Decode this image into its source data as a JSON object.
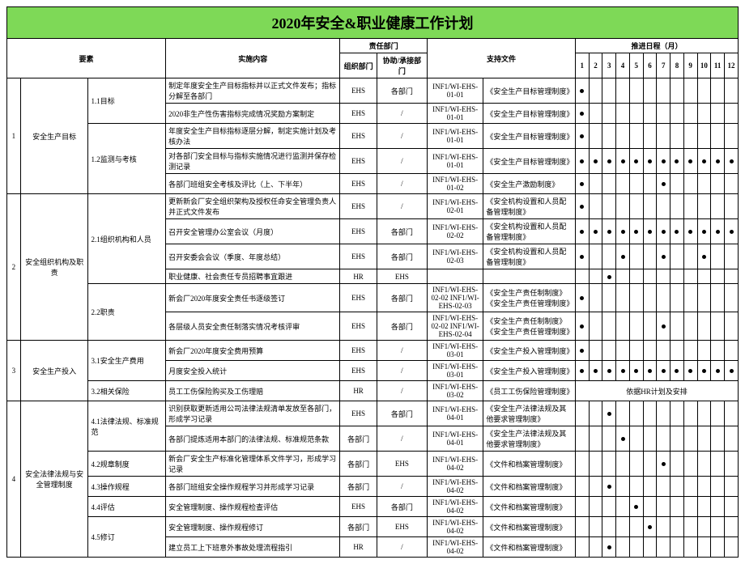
{
  "title": "2020年安全&职业健康工作计划",
  "headers": {
    "element": "要素",
    "content": "实施内容",
    "responsible": "责任部门",
    "org_dept": "组织部门",
    "assist_dept": "协助/承接部门",
    "support_doc": "支持文件",
    "schedule": "推进日程（月）",
    "months": [
      "1",
      "2",
      "3",
      "4",
      "5",
      "6",
      "7",
      "8",
      "9",
      "10",
      "11",
      "12"
    ]
  },
  "groups": [
    {
      "idx": "1",
      "name": "安全生产目标",
      "subs": [
        {
          "name": "1.1目标",
          "rows": [
            {
              "content": "制定年度安全生产目标指标并以正式文件发布；指标分解至各部门",
              "org": "EHS",
              "assist": "各部门",
              "docnum": "INF1/WI-EHS-01-01",
              "doc": "《安全生产目标管理制度》",
              "m": [
                1
              ],
              "merge": null
            },
            {
              "content": "2020非生产性伤害指标完成情况奖励方案制定",
              "org": "EHS",
              "assist": "/",
              "docnum": "INF1/WI-EHS-01-01",
              "doc": "《安全生产目标管理制度》",
              "m": [
                1
              ],
              "merge": null
            }
          ]
        },
        {
          "name": "1.2监测与考核",
          "rows": [
            {
              "content": "年度安全生产目标指标逐层分解，制定实施计划及考核办法",
              "org": "EHS",
              "assist": "/",
              "docnum": "INF1/WI-EHS-01-01",
              "doc": "《安全生产目标管理制度》",
              "m": [
                1
              ],
              "merge": null
            },
            {
              "content": "对各部门安全目标与指标实施情况进行监测并保存检测记录",
              "org": "EHS",
              "assist": "/",
              "docnum": "INF1/WI-EHS-01-01",
              "doc": "《安全生产目标管理制度》",
              "m": [
                1,
                2,
                3,
                4,
                5,
                6,
                7,
                8,
                9,
                10,
                11,
                12
              ],
              "merge": null
            },
            {
              "content": "各部门班组安全考核及评比（上、下半年）",
              "org": "EHS",
              "assist": "/",
              "docnum": "INF1/WI-EHS-01-02",
              "doc": "《安全生产激励制度》",
              "m": [
                1,
                7
              ],
              "merge": null
            }
          ]
        }
      ]
    },
    {
      "idx": "2",
      "name": "安全组织机构及职责",
      "subs": [
        {
          "name": "2.1组织机构和人员",
          "rows": [
            {
              "content": "更新新会厂安全组织架构及授权任命安全管理负责人并正式文件发布",
              "org": "EHS",
              "assist": "/",
              "docnum": "INF1/WI-EHS-02-01",
              "doc": "《安全机构设置和人员配备管理制度》",
              "m": [
                1
              ],
              "merge": null
            },
            {
              "content": "召开安全管理办公室会议（月度）",
              "org": "EHS",
              "assist": "各部门",
              "docnum": "INF1/WI-EHS-02-02",
              "doc": "《安全机构设置和人员配备管理制度》",
              "m": [
                1,
                2,
                3,
                4,
                5,
                6,
                7,
                8,
                9,
                10,
                11,
                12
              ],
              "merge": null
            },
            {
              "content": "召开安委会会议（季度、年度总结）",
              "org": "EHS",
              "assist": "各部门",
              "docnum": "INF1/WI-EHS-02-03",
              "doc": "《安全机构设置和人员配备管理制度》",
              "m": [
                1,
                4,
                7,
                10
              ],
              "merge": null
            },
            {
              "content": "职业健康、社会责任专员招聘事宜跟进",
              "org": "HR",
              "assist": "EHS",
              "docnum": "",
              "doc": "",
              "m": [
                3
              ],
              "merge": null
            }
          ]
        },
        {
          "name": "2.2职责",
          "rows": [
            {
              "content": "新会厂2020年度安全责任书逐级签订",
              "org": "EHS",
              "assist": "各部门",
              "docnum": "INF1/WI-EHS-02-02 INF1/WI-EHS-02-03",
              "doc": "《安全生产责任制制度》《安全生产责任管理制度》",
              "m": [
                1
              ],
              "merge": null
            },
            {
              "content": "各层级人员安全责任制落实情况考核评审",
              "org": "EHS",
              "assist": "各部门",
              "docnum": "INF1/WI-EHS-02-02 INF1/WI-EHS-02-04",
              "doc": "《安全生产责任制制度》《安全生产责任管理制度》",
              "m": [
                1,
                7
              ],
              "merge": null
            }
          ]
        }
      ]
    },
    {
      "idx": "3",
      "name": "安全生产投入",
      "subs": [
        {
          "name": "3.1安全生产费用",
          "rows": [
            {
              "content": "新会厂2020年度安全费用预算",
              "org": "EHS",
              "assist": "/",
              "docnum": "INF1/WI-EHS-03-01",
              "doc": "《安全生产投入管理制度》",
              "m": [
                1
              ],
              "merge": null
            },
            {
              "content": "月度安全投入统计",
              "org": "EHS",
              "assist": "/",
              "docnum": "INF1/WI-EHS-03-01",
              "doc": "《安全生产投入管理制度》",
              "m": [
                1,
                2,
                3,
                4,
                5,
                6,
                7,
                8,
                9,
                10,
                11,
                12
              ],
              "merge": null
            }
          ]
        },
        {
          "name": "3.2相关保险",
          "rows": [
            {
              "content": "员工工伤保险购买及工伤理赔",
              "org": "HR",
              "assist": "/",
              "docnum": "INF1/WI-EHS-03-02",
              "doc": "《员工工伤保险管理制度》",
              "m": [],
              "merge": "依据HR计划及安排"
            }
          ]
        }
      ]
    },
    {
      "idx": "4",
      "name": "安全法律法规与安全管理制度",
      "subs": [
        {
          "name": "4.1法律法规、标准规范",
          "rows": [
            {
              "content": "识别获取更新适用公司法律法规清单发放至各部门，形成学习记录",
              "org": "EHS",
              "assist": "各部门",
              "docnum": "INF1/WI-EHS-04-01",
              "doc": "《安全生产法律法规及其他要求管理制度》",
              "m": [
                3
              ],
              "merge": null
            },
            {
              "content": "各部门提炼适用本部门的法律法规、标准规范条款",
              "org": "各部门",
              "assist": "/",
              "docnum": "INF1/WI-EHS-04-01",
              "doc": "《安全生产法律法规及其他要求管理制度》",
              "m": [
                4
              ],
              "merge": null
            }
          ]
        },
        {
          "name": "4.2规章制度",
          "rows": [
            {
              "content": "新会厂安全生产标准化管理体系文件学习，形成学习记录",
              "org": "各部门",
              "assist": "EHS",
              "docnum": "INF1/WI-EHS-04-02",
              "doc": "《文件和档案管理制度》",
              "m": [
                7
              ],
              "merge": null
            }
          ]
        },
        {
          "name": "4.3操作规程",
          "rows": [
            {
              "content": "各部门班组安全操作规程学习并形成学习记录",
              "org": "各部门",
              "assist": "/",
              "docnum": "INF1/WI-EHS-04-02",
              "doc": "《文件和档案管理制度》",
              "m": [
                3
              ],
              "merge": null
            }
          ]
        },
        {
          "name": "4.4评估",
          "rows": [
            {
              "content": "安全管理制度、操作规程检查评估",
              "org": "EHS",
              "assist": "各部门",
              "docnum": "INF1/WI-EHS-04-02",
              "doc": "《文件和档案管理制度》",
              "m": [
                5
              ],
              "merge": null
            }
          ]
        },
        {
          "name": "4.5修订",
          "rows": [
            {
              "content": "安全管理制度、操作规程修订",
              "org": "各部门",
              "assist": "EHS",
              "docnum": "INF1/WI-EHS-04-02",
              "doc": "《文件和档案管理制度》",
              "m": [
                6
              ],
              "merge": null
            },
            {
              "content": "建立员工上下班意外事故处理流程指引",
              "org": "HR",
              "assist": "/",
              "docnum": "INF1/WI-EHS-04-02",
              "doc": "《文件和档案管理制度》",
              "m": [
                3
              ],
              "merge": null
            }
          ]
        }
      ]
    }
  ]
}
